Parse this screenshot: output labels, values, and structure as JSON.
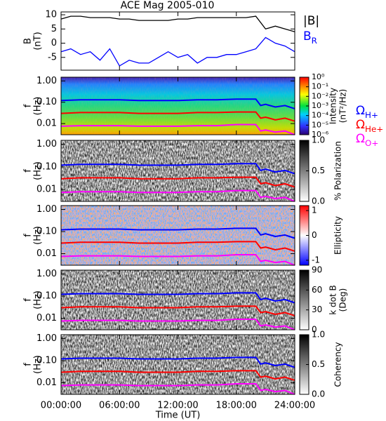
{
  "chart_data": [
    {
      "type": "line",
      "title": "ACE Mag 2005-010",
      "ylabel": [
        "B",
        "(nT)"
      ],
      "x": [
        0,
        1,
        2,
        3,
        4,
        5,
        6,
        7,
        8,
        9,
        10,
        11,
        12,
        13,
        14,
        15,
        16,
        17,
        18,
        19,
        20,
        21,
        22,
        23,
        24
      ],
      "xlim": [
        0,
        24
      ],
      "ylim": [
        -9.5,
        11
      ],
      "yticks": [
        10,
        5,
        0,
        -5
      ],
      "series": [
        {
          "name": "|B|",
          "color": "#000000",
          "values": [
            8.5,
            9.5,
            9.5,
            9,
            9,
            9,
            8.5,
            8.5,
            8,
            8,
            8,
            8,
            8.5,
            8.5,
            9,
            9,
            9,
            9,
            9,
            9,
            9.5,
            5,
            6,
            5,
            4
          ]
        },
        {
          "name": "B",
          "name_sub": "R",
          "color": "#0000ff",
          "values": [
            -3,
            -2,
            -4,
            -3,
            -6,
            -2,
            -8,
            -6,
            -7,
            -7,
            -5,
            -3,
            -5,
            -4,
            -7,
            -5,
            -5,
            -4,
            -4,
            -3,
            -2,
            2,
            0,
            -1,
            -3
          ]
        }
      ]
    },
    {
      "type": "spectrogram",
      "ylabel": [
        "f",
        "(Hz)"
      ],
      "log_y": true,
      "xlim": [
        0,
        24
      ],
      "ylim": [
        0.003,
        1.5
      ],
      "yticks": [
        {
          "value": 1,
          "label": "1.00"
        },
        {
          "value": 0.1,
          "label": "0.10"
        },
        {
          "value": 0.01,
          "label": "0.01"
        }
      ],
      "colormap": "rainbow",
      "clog": true,
      "clim": [
        1e-06,
        1
      ],
      "clabel": [
        "Intensity",
        "(nT²/Hz)"
      ],
      "cticks": [
        {
          "value": 1,
          "label": "10⁰"
        },
        {
          "value": 0.1,
          "label": "10⁻¹"
        },
        {
          "value": 0.01,
          "label": "10⁻²"
        },
        {
          "value": 0.001,
          "label": "10⁻³"
        },
        {
          "value": 0.0001,
          "label": "10⁻⁴"
        },
        {
          "value": 1e-05,
          "label": "10⁻⁵"
        },
        {
          "value": 1e-06,
          "label": "10⁻⁶"
        }
      ],
      "x": [
        0,
        2,
        4,
        6,
        8,
        10,
        12,
        14,
        16,
        18,
        20,
        20.5,
        21,
        22,
        23,
        24
      ],
      "series": [
        {
          "name": "Ω",
          "name_sub": "H+",
          "color": "#0000ff",
          "values": [
            0.12,
            0.13,
            0.13,
            0.13,
            0.12,
            0.12,
            0.12,
            0.13,
            0.13,
            0.14,
            0.14,
            0.07,
            0.08,
            0.06,
            0.07,
            0.05
          ]
        },
        {
          "name": "Ω",
          "name_sub": "He+",
          "color": "#ff0000",
          "values": [
            0.03,
            0.033,
            0.033,
            0.033,
            0.03,
            0.03,
            0.03,
            0.033,
            0.033,
            0.035,
            0.035,
            0.018,
            0.02,
            0.015,
            0.018,
            0.013
          ]
        },
        {
          "name": "Ω",
          "name_sub": "O+",
          "color": "#ff00ff",
          "values": [
            0.0075,
            0.008,
            0.008,
            0.008,
            0.0075,
            0.0075,
            0.0075,
            0.008,
            0.008,
            0.009,
            0.009,
            0.0045,
            0.005,
            0.004,
            0.0045,
            0.003
          ]
        }
      ]
    },
    {
      "type": "spectrogram",
      "ylabel": [
        "f",
        "(Hz)"
      ],
      "log_y": true,
      "xlim": [
        0,
        24
      ],
      "ylim": [
        0.003,
        1.5
      ],
      "yticks": [
        {
          "value": 1,
          "label": "1.00"
        },
        {
          "value": 0.1,
          "label": "0.10"
        },
        {
          "value": 0.01,
          "label": "0.01"
        }
      ],
      "colormap": "gray",
      "clim": [
        0,
        1
      ],
      "clabel": [
        "% Polarization"
      ],
      "cticks": [
        {
          "value": 1,
          "label": "1.0"
        },
        {
          "value": 0.5,
          "label": "0.5"
        },
        {
          "value": 0,
          "label": "0.0"
        }
      ]
    },
    {
      "type": "spectrogram",
      "ylabel": [
        "f",
        "(Hz)"
      ],
      "log_y": true,
      "xlim": [
        0,
        24
      ],
      "ylim": [
        0.003,
        1.5
      ],
      "yticks": [
        {
          "value": 1,
          "label": "1.00"
        },
        {
          "value": 0.1,
          "label": "0.10"
        },
        {
          "value": 0.01,
          "label": "0.01"
        }
      ],
      "colormap": "bwr",
      "clim": [
        -1.2,
        1.2
      ],
      "clabel": [
        "Ellipticity"
      ],
      "cticks": [
        1,
        0,
        -1
      ]
    },
    {
      "type": "spectrogram",
      "ylabel": [
        "f",
        "(Hz)"
      ],
      "log_y": true,
      "xlim": [
        0,
        24
      ],
      "ylim": [
        0.003,
        1.5
      ],
      "yticks": [
        {
          "value": 1,
          "label": "1.00"
        },
        {
          "value": 0.1,
          "label": "0.10"
        },
        {
          "value": 0.01,
          "label": "0.01"
        }
      ],
      "colormap": "gray",
      "clim": [
        0,
        90
      ],
      "clabel": [
        "k dot B",
        "(Deg)"
      ],
      "cticks": [
        90,
        60,
        30,
        0
      ]
    },
    {
      "type": "spectrogram",
      "ylabel": [
        "f",
        "(Hz)"
      ],
      "log_y": true,
      "xlim": [
        0,
        24
      ],
      "ylim": [
        0.003,
        1.5
      ],
      "yticks": [
        {
          "value": 1,
          "label": "1.00"
        },
        {
          "value": 0.1,
          "label": "0.10"
        },
        {
          "value": 0.01,
          "label": "0.01"
        }
      ],
      "colormap": "gray",
      "clim": [
        0,
        1
      ],
      "clabel": [
        "Coherency"
      ],
      "cticks": [
        {
          "value": 1,
          "label": "1.0"
        },
        {
          "value": 0.5,
          "label": "0.5"
        },
        {
          "value": 0,
          "label": "0.0"
        }
      ],
      "xlabel": "Time (UT)",
      "xticks": [
        {
          "value": 0,
          "label": "00:00:00"
        },
        {
          "value": 6,
          "label": "06:00:00"
        },
        {
          "value": 12,
          "label": "12:00:00"
        },
        {
          "value": 18,
          "label": "18:00:00"
        },
        {
          "value": 24,
          "label": "24:00:00"
        }
      ]
    }
  ]
}
